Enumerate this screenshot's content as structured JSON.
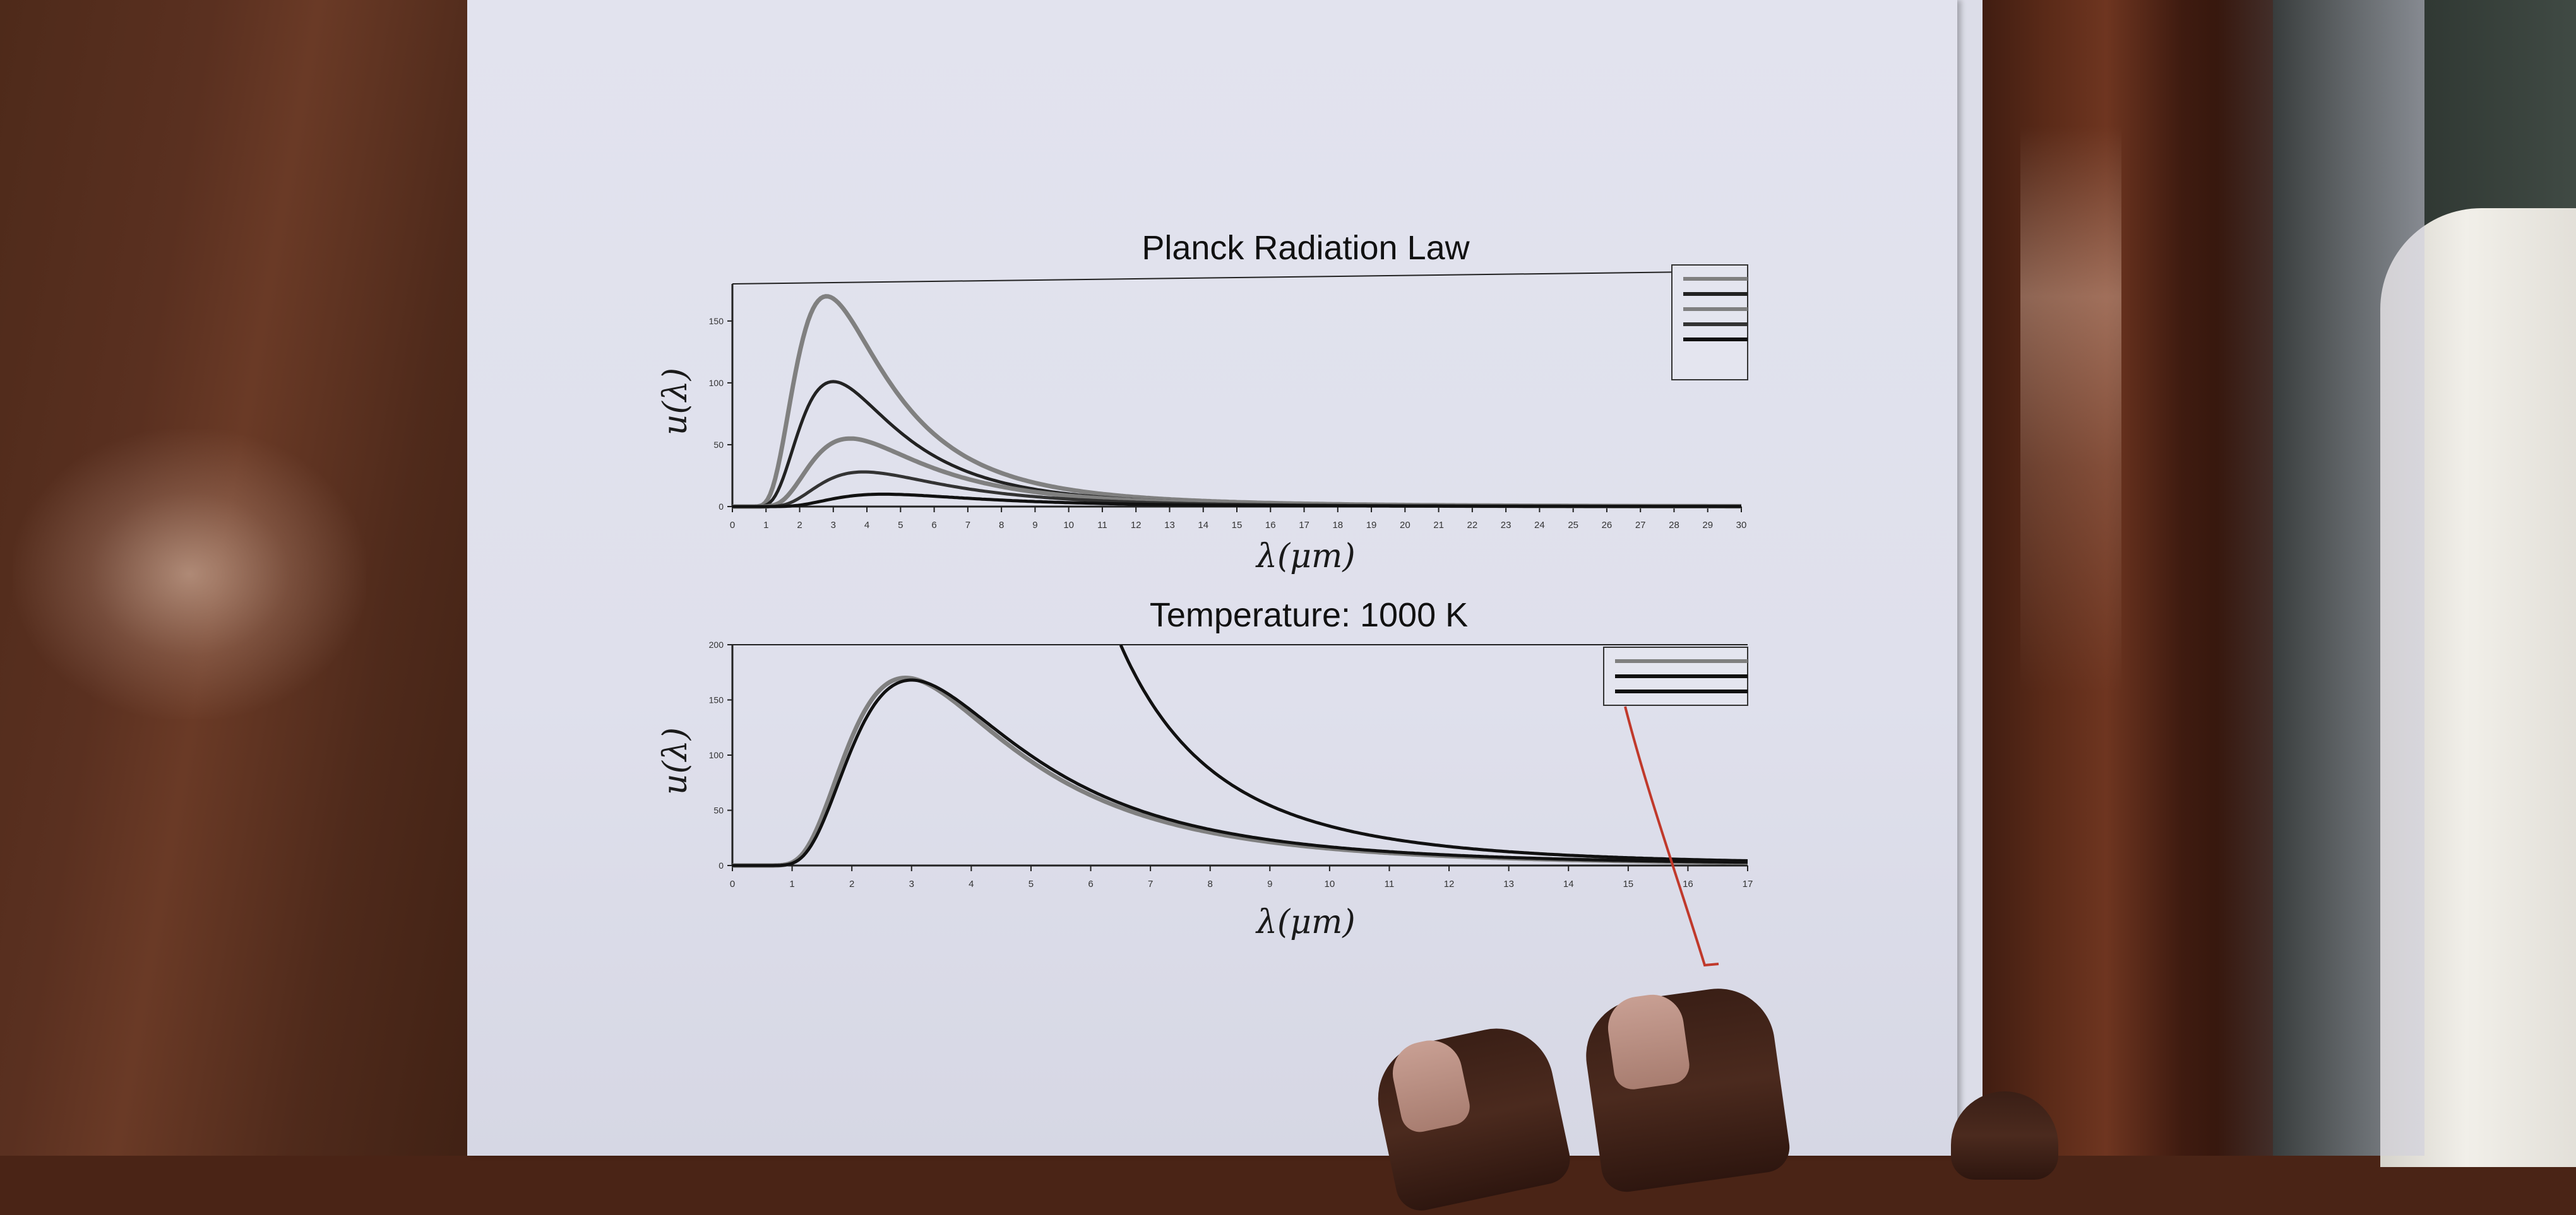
{
  "scene": {
    "description_colors": {
      "paper": "#e0e1ec",
      "wood": "#5a3020",
      "ink": "#1a1a1a",
      "curve_gray": "#808080",
      "pen_red": "#c0392b"
    }
  },
  "chart_data": [
    {
      "type": "line",
      "title": "Planck Radiation Law",
      "xlabel": "λ(μm)",
      "ylabel": "u(λ)",
      "xlim": [
        0,
        30
      ],
      "ylim": [
        0,
        180
      ],
      "x_ticks": [
        "0",
        "1",
        "2",
        "3",
        "4",
        "5",
        "6",
        "7",
        "8",
        "9",
        "10",
        "11",
        "12",
        "13",
        "14",
        "15",
        "16",
        "17",
        "18",
        "19",
        "20",
        "21",
        "22",
        "23",
        "24",
        "25",
        "26",
        "27",
        "28",
        "29",
        "30"
      ],
      "y_ticks": [
        "0",
        "50",
        "100",
        "150"
      ],
      "legend": "top-right",
      "series": [
        {
          "peak_x": 2.8,
          "peak_y": 170,
          "color": "#808080"
        },
        {
          "peak_x": 3.0,
          "peak_y": 101,
          "color": "#222222"
        },
        {
          "peak_x": 3.5,
          "peak_y": 55,
          "color": "#808080"
        },
        {
          "peak_x": 3.9,
          "peak_y": 28,
          "color": "#333333"
        },
        {
          "peak_x": 4.5,
          "peak_y": 10,
          "color": "#111111"
        }
      ]
    },
    {
      "type": "line",
      "title": "Temperature: 1000 K",
      "xlabel": "λ(μm)",
      "ylabel": "u(λ)",
      "xlim": [
        0,
        17
      ],
      "ylim": [
        0,
        200
      ],
      "x_ticks": [
        "0",
        "1",
        "2",
        "3",
        "4",
        "5",
        "6",
        "7",
        "8",
        "9",
        "10",
        "11",
        "12",
        "13",
        "14",
        "15",
        "16",
        "17"
      ],
      "y_ticks": [
        "0",
        "50",
        "100",
        "150",
        "200"
      ],
      "legend": "top-right",
      "series": [
        {
          "kind": "planck",
          "peak_x": 2.9,
          "peak_y": 170,
          "color": "#808080"
        },
        {
          "kind": "planck",
          "peak_x": 3.0,
          "peak_y": 168,
          "color": "#111111"
        },
        {
          "kind": "rayleigh-jeans",
          "color": "#111111"
        }
      ]
    }
  ]
}
